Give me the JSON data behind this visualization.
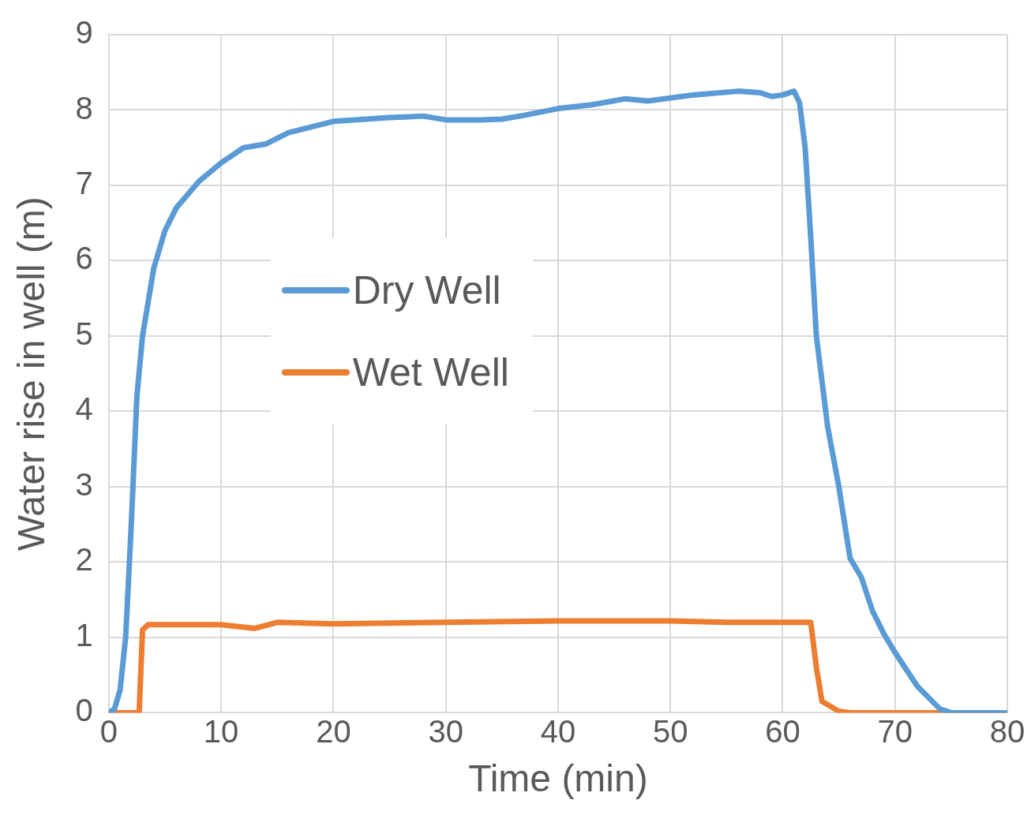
{
  "chart_data": {
    "type": "line",
    "xlabel": "Time (min)",
    "ylabel": "Water rise in well (m)",
    "xlim": [
      0,
      80
    ],
    "xticks": [
      0,
      10,
      20,
      30,
      40,
      50,
      60,
      70,
      80
    ],
    "ylim": [
      0,
      9
    ],
    "yticks": [
      0,
      1,
      2,
      3,
      4,
      5,
      6,
      7,
      8,
      9
    ],
    "grid": true,
    "legend": "left",
    "marker": "none",
    "line_style": "solid",
    "series": [
      {
        "name": "Dry Well",
        "color": "#5b9bd5",
        "x": [
          0,
          0.5,
          1,
          1.5,
          2,
          2.5,
          3,
          4,
          5,
          6,
          8,
          10,
          12,
          14,
          16,
          20,
          25,
          28,
          30,
          33,
          35,
          37,
          40,
          43,
          46,
          48,
          52,
          56,
          58,
          59,
          60,
          61,
          61.5,
          62,
          62.5,
          63,
          64,
          65,
          66,
          67,
          68,
          69,
          70,
          72,
          74,
          75,
          80
        ],
        "values": [
          0,
          0.05,
          0.3,
          1,
          2.5,
          4.2,
          5,
          5.9,
          6.4,
          6.7,
          7.05,
          7.3,
          7.5,
          7.55,
          7.7,
          7.85,
          7.9,
          7.92,
          7.87,
          7.87,
          7.88,
          7.93,
          8.02,
          8.07,
          8.15,
          8.12,
          8.2,
          8.25,
          8.23,
          8.18,
          8.2,
          8.25,
          8.1,
          7.5,
          6.3,
          5,
          3.8,
          3,
          2.05,
          1.8,
          1.35,
          1.05,
          0.8,
          0.35,
          0.05,
          0,
          0
        ]
      },
      {
        "name": "Wet Well",
        "color": "#ed7d31",
        "x": [
          0,
          2.7,
          3,
          3.5,
          10,
          13,
          15,
          20,
          30,
          40,
          50,
          55,
          62.5,
          63,
          63.5,
          65,
          66,
          80
        ],
        "values": [
          0,
          0,
          1.1,
          1.17,
          1.17,
          1.12,
          1.2,
          1.18,
          1.2,
          1.22,
          1.22,
          1.2,
          1.2,
          0.6,
          0.15,
          0.02,
          0,
          0
        ]
      }
    ]
  }
}
